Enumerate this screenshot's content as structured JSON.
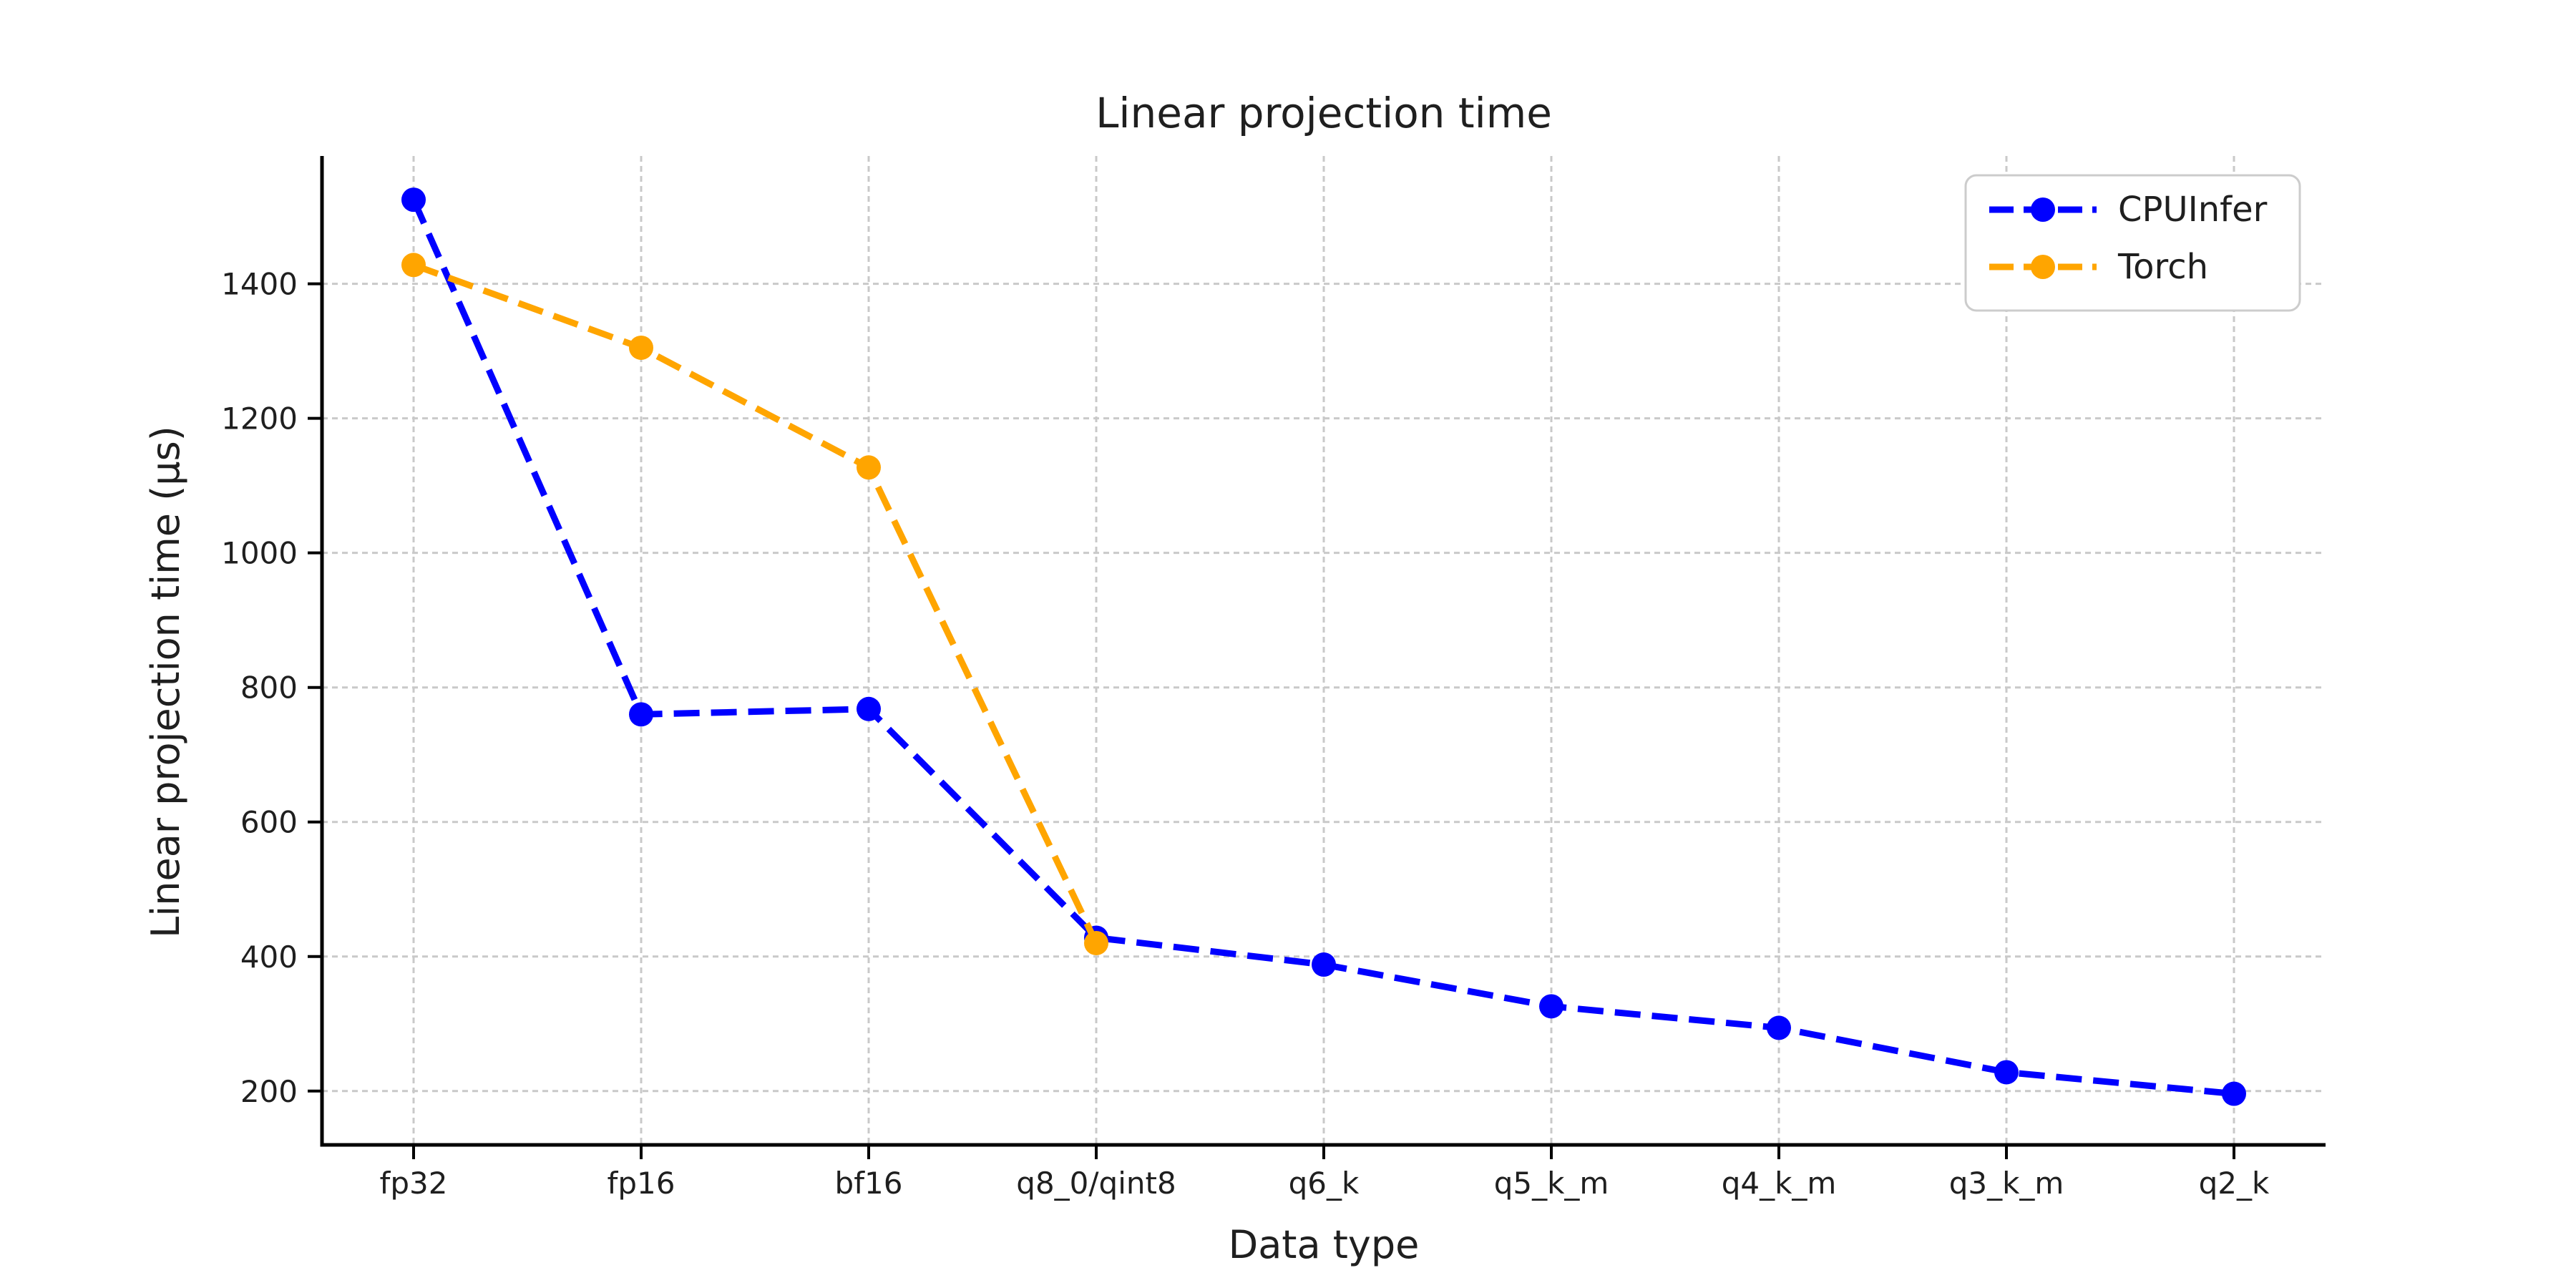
{
  "chart_data": {
    "type": "line",
    "title": "Linear projection time",
    "xlabel": "Data type",
    "ylabel": "Linear projection time (µs)",
    "categories": [
      "fp32",
      "fp16",
      "bf16",
      "q8_0/qint8",
      "q6_k",
      "q5_k_m",
      "q4_k_m",
      "q3_k_m",
      "q2_k"
    ],
    "series": [
      {
        "name": "CPUInfer",
        "color": "#0000ff",
        "linestyle": "dashed",
        "marker": "circle",
        "values": [
          1525,
          760,
          768,
          428,
          388,
          326,
          294,
          228,
          196
        ]
      },
      {
        "name": "Torch",
        "color": "#ffa500",
        "linestyle": "dashed",
        "marker": "circle",
        "values": [
          1428,
          1305,
          1127,
          420
        ]
      }
    ],
    "yticks": [
      200,
      400,
      600,
      800,
      1000,
      1200,
      1400
    ],
    "ylim": [
      120,
      1590
    ],
    "grid": true,
    "grid_style": "dashed",
    "legend_position": "upper right",
    "colors": {
      "background": "#ffffff",
      "grid": "#c9c9c9",
      "axis": "#000000",
      "text": "#1f1f1f",
      "legend_border": "#cccccc"
    }
  }
}
